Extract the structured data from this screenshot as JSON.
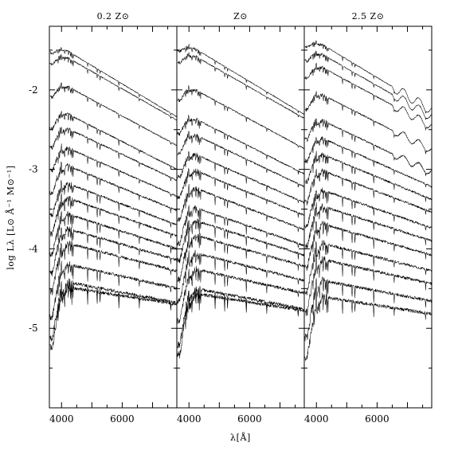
{
  "chart_data": [
    {
      "type": "line",
      "title": "0.2 Z⊙",
      "xlabel": "λ[Å]",
      "ylabel": "log Lλ [L⊙ Å⁻¹ M⊙⁻¹]",
      "xlim": [
        3600,
        7800
      ],
      "ylim": [
        -6.0,
        -1.2
      ],
      "xticks": [
        "4000",
        "6000"
      ],
      "yticks": [
        "-2",
        "-3",
        "-4",
        "-5"
      ],
      "series_level_at_4500A": [
        -1.58,
        -1.66,
        -2.02,
        -2.36,
        -2.54,
        -2.78,
        -3.0,
        -3.22,
        -3.4,
        -3.6,
        -3.78,
        -3.96,
        -4.22,
        -4.44,
        -4.5
      ]
    },
    {
      "type": "line",
      "title": "Z⊙",
      "xlabel": "λ[Å]",
      "ylabel": "log Lλ [L⊙ Å⁻¹ M⊙⁻¹]",
      "xlim": [
        3600,
        7800
      ],
      "ylim": [
        -6.0,
        -1.2
      ],
      "xticks": [
        "4000",
        "6000"
      ],
      "yticks": [
        "-2",
        "-3",
        "-4",
        "-5"
      ],
      "series_level_at_4500A": [
        -1.55,
        -1.64,
        -2.06,
        -2.42,
        -2.62,
        -2.86,
        -3.06,
        -3.28,
        -3.52,
        -3.68,
        -3.86,
        -4.08,
        -4.28,
        -4.52,
        -4.58
      ]
    },
    {
      "type": "line",
      "title": "2.5 Z⊙",
      "xlabel": "λ[Å]",
      "ylabel": "log Lλ [L⊙ Å⁻¹ M⊙⁻¹]",
      "xlim": [
        3600,
        7800
      ],
      "ylim": [
        -6.0,
        -1.2
      ],
      "xticks": [
        "4000",
        "6000"
      ],
      "yticks": [
        "-2",
        "-3",
        "-4",
        "-5"
      ],
      "series_level_at_4500A": [
        -1.5,
        -1.62,
        -1.78,
        -2.12,
        -2.44,
        -2.66,
        -2.86,
        -3.06,
        -3.3,
        -3.5,
        -3.72,
        -3.96,
        -4.16,
        -4.42,
        -4.62
      ]
    }
  ]
}
